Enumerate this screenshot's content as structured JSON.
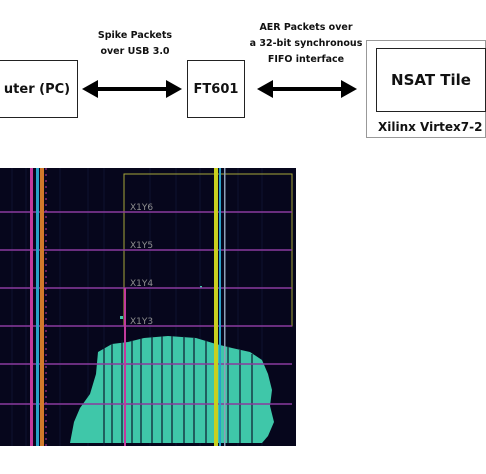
{
  "blocks": {
    "computer_label": "uter (PC)",
    "ft601_label": "FT601",
    "nsat_label": "NSAT Tile",
    "fpga_label": "Xilinx Virtex7-2"
  },
  "links": {
    "usb_caption_line1": "Spike Packets",
    "usb_caption_line2": "over USB 3.0",
    "aer_caption_line1": "AER Packets over",
    "aer_caption_line2": "a 32-bit synchronous",
    "aer_caption_line3": "FIFO interface"
  },
  "floorplan": {
    "region_labels": [
      "X1Y6",
      "X1Y5",
      "X1Y4",
      "X1Y3"
    ]
  },
  "colors": {
    "floorplan_bg": "#06061c",
    "fill": "#3fc7a9",
    "region_outline": "#a6a63a",
    "row_line": "#8a3a9e",
    "column_yellow": "#c9cf1e",
    "column_magenta": "#c23a9c",
    "column_cyan": "#2aa0c8"
  }
}
